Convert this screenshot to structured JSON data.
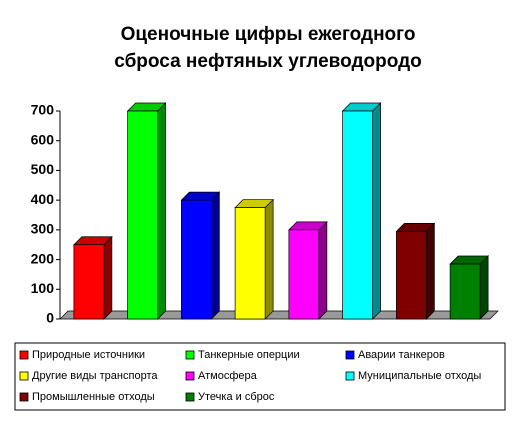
{
  "chart_data": {
    "type": "bar3d",
    "title": [
      "Оценочные цифры ежегодного",
      "сброса нефтяных углеводородо"
    ],
    "categories": [
      null
    ],
    "series": [
      {
        "name": "Природные источники",
        "color": "#ff0000",
        "values": [
          250
        ]
      },
      {
        "name": "Танкерные оперции",
        "color": "#00ff00",
        "values": [
          700
        ]
      },
      {
        "name": "Аварии танкеров",
        "color": "#0000ff",
        "values": [
          400
        ]
      },
      {
        "name": "Другие виды транспорта",
        "color": "#ffff00",
        "values": [
          375
        ]
      },
      {
        "name": "Атмосфера",
        "color": "#ff00ff",
        "values": [
          300
        ]
      },
      {
        "name": "Муниципальные отходы",
        "color": "#00ffff",
        "values": [
          700
        ]
      },
      {
        "name": "Промышленные отходы",
        "color": "#800000",
        "values": [
          295
        ]
      },
      {
        "name": "Утечка и сброс",
        "color": "#008000",
        "values": [
          185
        ]
      }
    ],
    "ylim": [
      0,
      700
    ],
    "yticks": [
      0,
      100,
      200,
      300,
      400,
      500,
      600,
      700
    ],
    "legend": "bottom"
  }
}
